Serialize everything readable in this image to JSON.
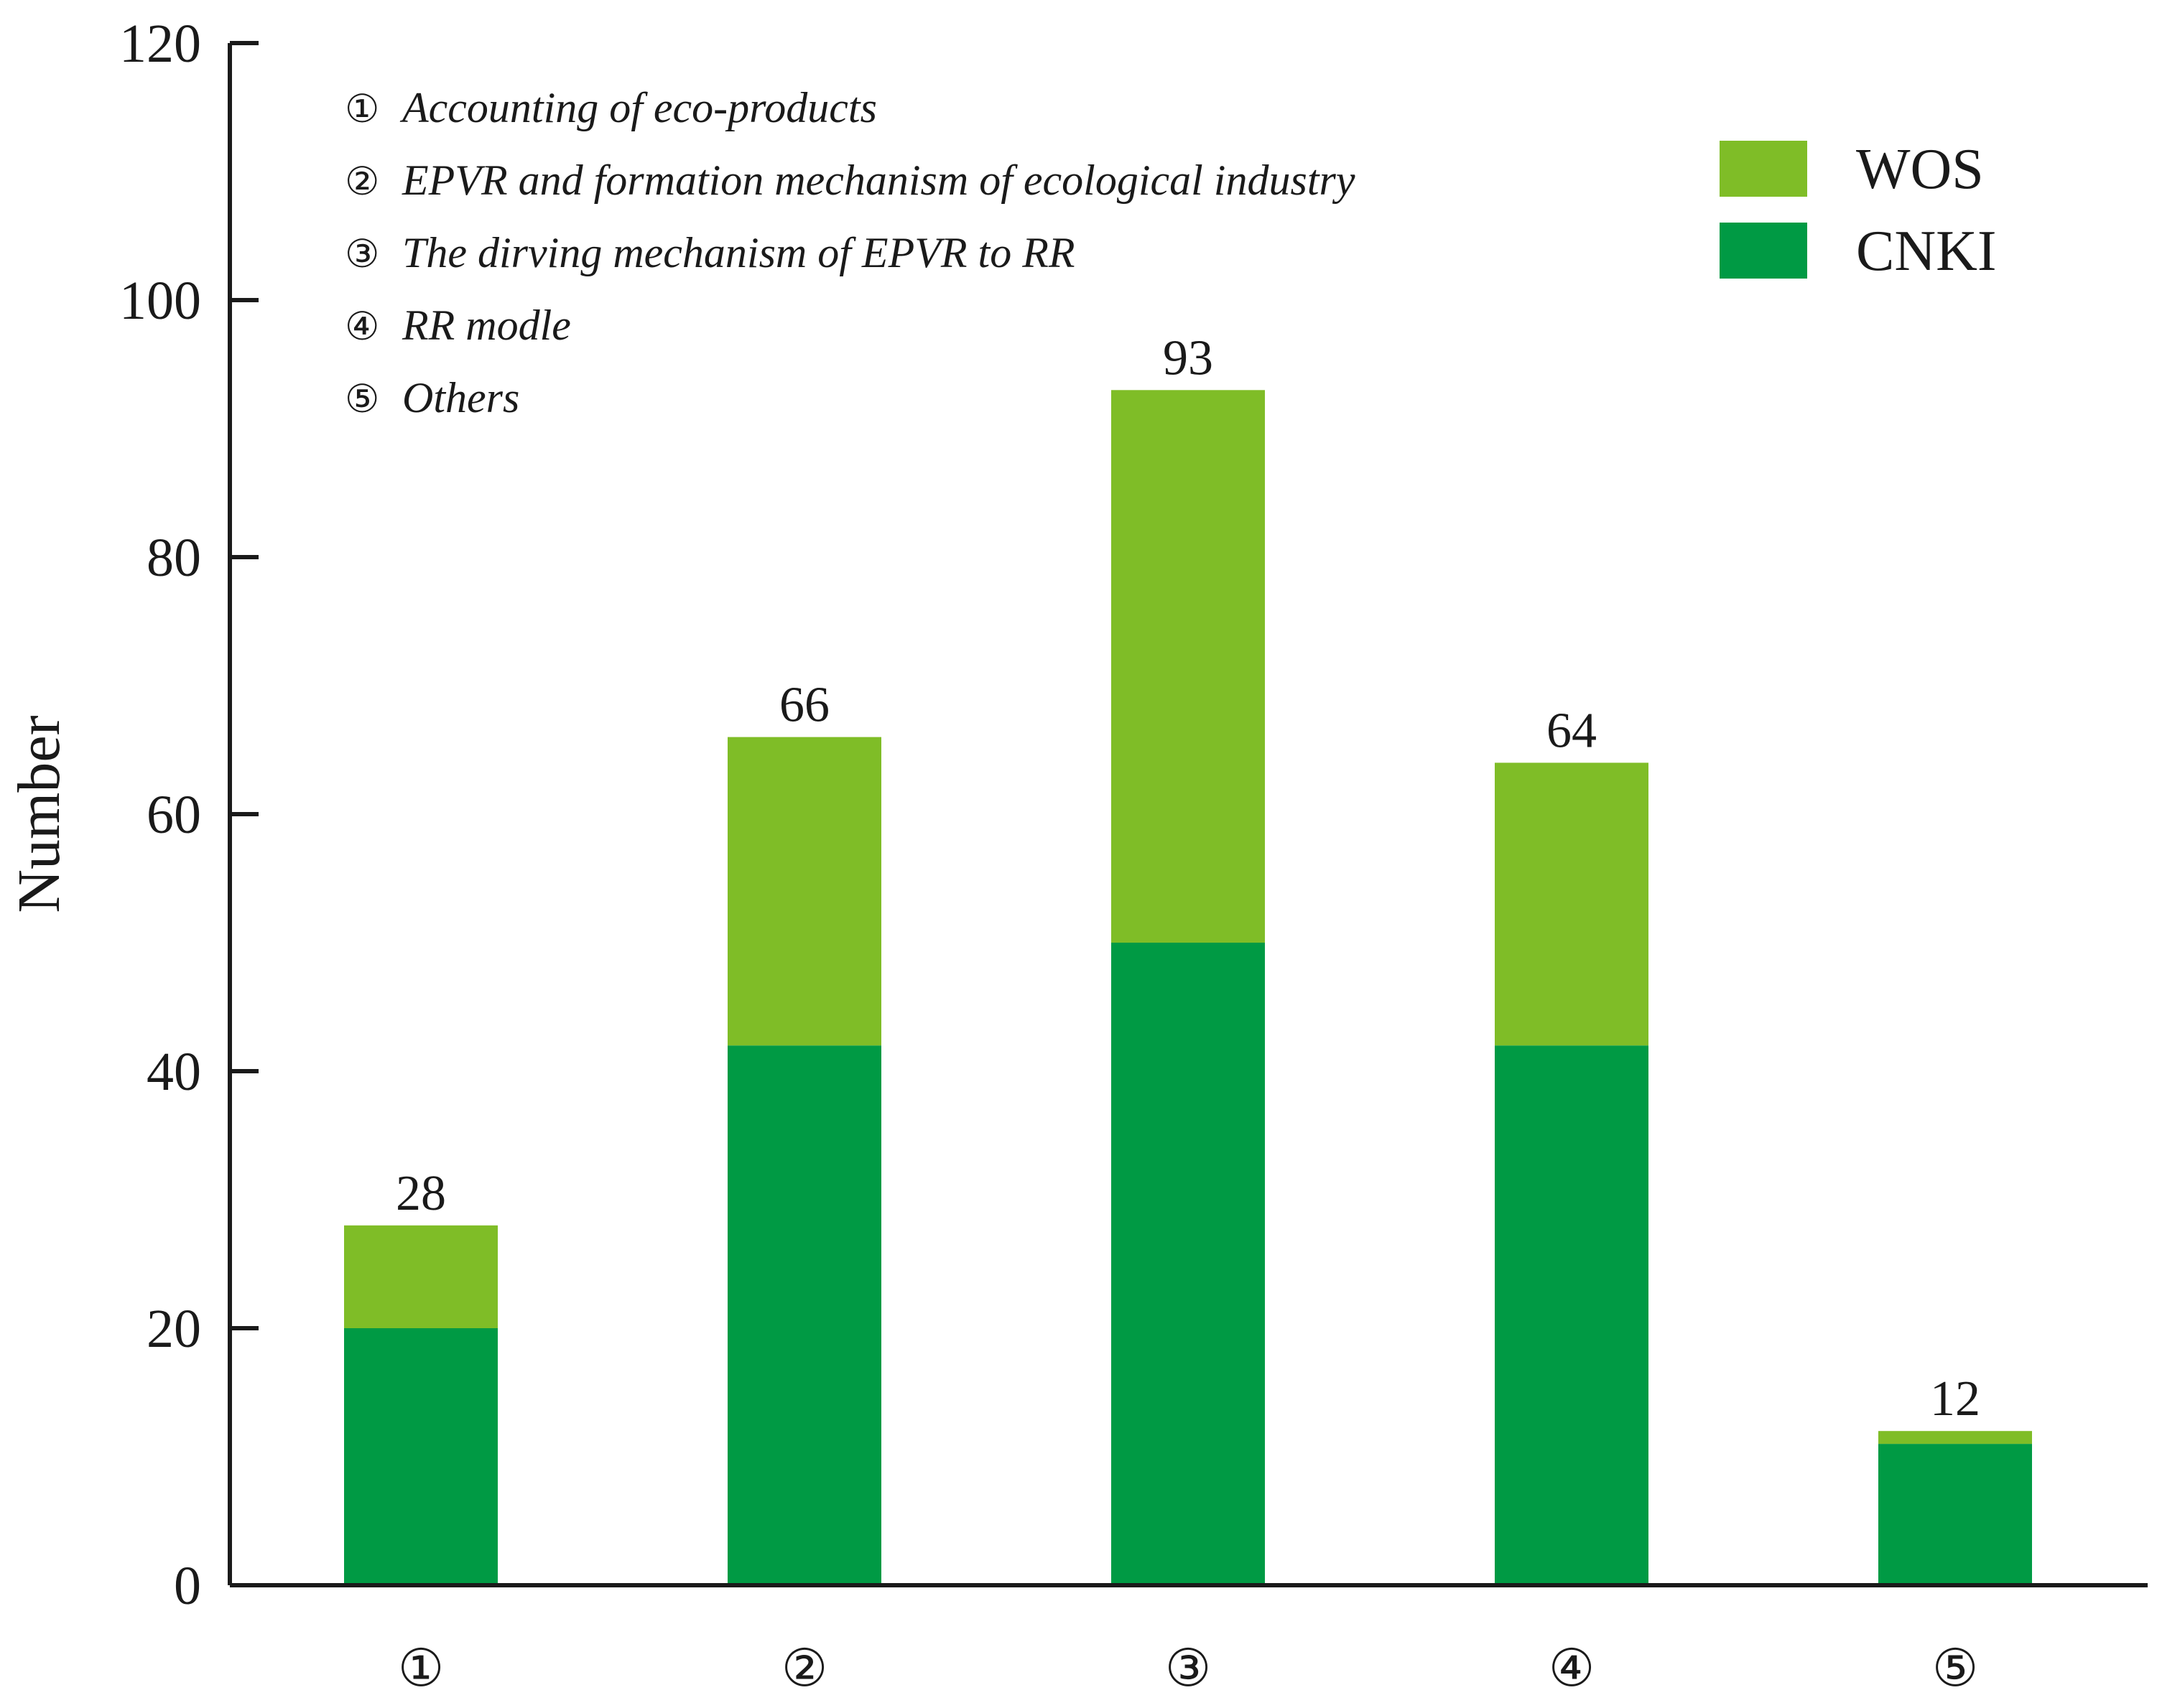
{
  "chart_data": {
    "type": "bar",
    "stacked": true,
    "categories": [
      "①",
      "②",
      "③",
      "④",
      "⑤"
    ],
    "series": [
      {
        "name": "CNKI",
        "color": "#009a44",
        "values": [
          20,
          42,
          50,
          42,
          11
        ]
      },
      {
        "name": "WOS",
        "color": "#7fbd27",
        "values": [
          8,
          24,
          43,
          22,
          1
        ]
      }
    ],
    "totals": [
      28,
      66,
      93,
      64,
      12
    ],
    "ylabel": "Number",
    "xlabel": "",
    "ylim": [
      0,
      120
    ],
    "yticks": [
      0,
      20,
      40,
      60,
      80,
      100,
      120
    ],
    "legend_position": "top-right",
    "grid": false,
    "topics": [
      {
        "marker": "①",
        "label": "Accounting of eco-products"
      },
      {
        "marker": "②",
        "label": "EPVR and formation mechanism of ecological industry"
      },
      {
        "marker": "③",
        "label": "The dirving mechanism of EPVR to RR"
      },
      {
        "marker": "④",
        "label": "RR modle"
      },
      {
        "marker": "⑤",
        "label": "Others"
      }
    ]
  }
}
